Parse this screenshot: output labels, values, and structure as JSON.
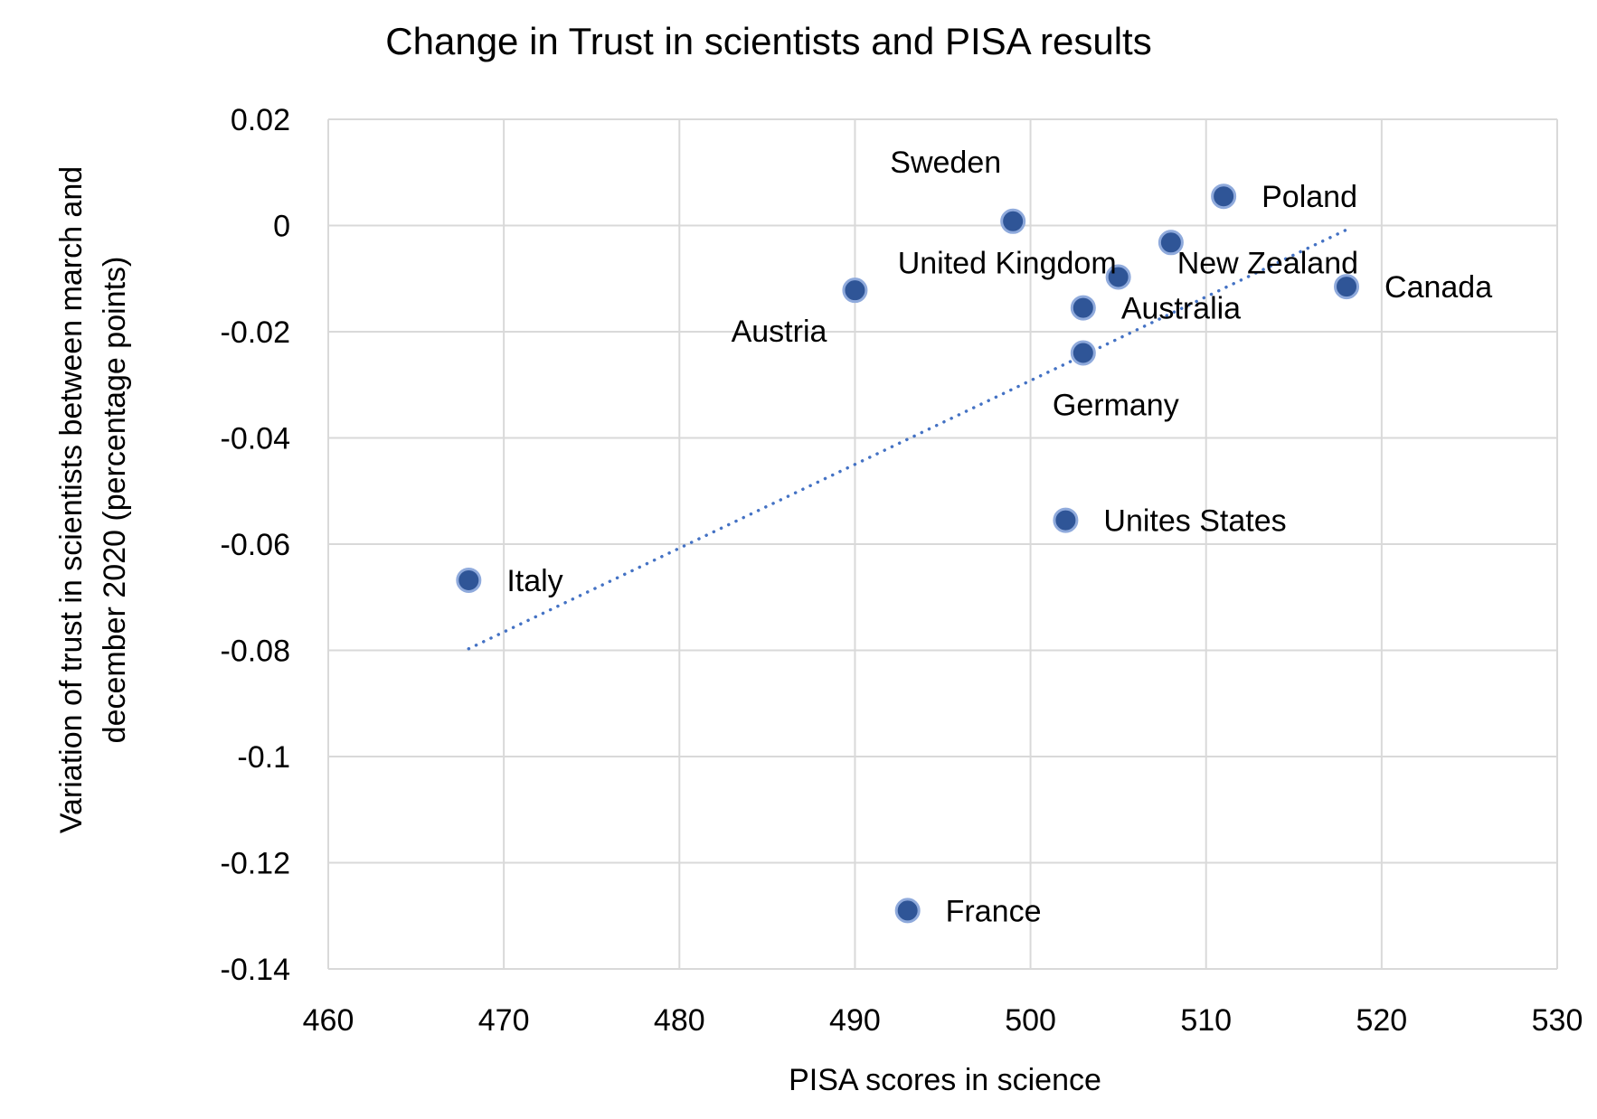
{
  "chart_data": {
    "type": "scatter",
    "title": "Change in Trust in scientists and PISA results",
    "xlabel": "PISA scores in science",
    "ylabel_lines": [
      "Variation of trust in scientists between march and",
      "december 2020 (percentage points)"
    ],
    "xlim": [
      460,
      530
    ],
    "ylim": [
      -0.14,
      0.02
    ],
    "xticks": [
      460,
      470,
      480,
      490,
      500,
      510,
      520,
      530
    ],
    "yticks": [
      0.02,
      0,
      -0.02,
      -0.04,
      -0.06,
      -0.08,
      -0.1,
      -0.12,
      -0.14
    ],
    "ytick_labels": [
      "0.02",
      "0",
      "-0.02",
      "-0.04",
      "-0.06",
      "-0.08",
      "-0.1",
      "-0.12",
      "-0.14"
    ],
    "grid": true,
    "point_color": "#2F5597",
    "point_edge_color": "#8FAADC",
    "trendline_color": "#4472C4",
    "trendline": {
      "style": "dotted",
      "x": [
        468,
        518
      ],
      "y": [
        -0.0797,
        -0.0008
      ]
    },
    "points": [
      {
        "label": "Poland",
        "x": 511,
        "y": 0.0055,
        "label_pos": "right"
      },
      {
        "label": "Sweden",
        "x": 499,
        "y": 0.0008,
        "label_pos": "upper-left"
      },
      {
        "label": "New Zealand",
        "x": 508,
        "y": -0.0032,
        "label_pos": "below-right"
      },
      {
        "label": "United Kingdom",
        "x": 505,
        "y": -0.0097,
        "label_pos": "left"
      },
      {
        "label": "Canada",
        "x": 518,
        "y": -0.0115,
        "label_pos": "right"
      },
      {
        "label": "Austria",
        "x": 490,
        "y": -0.0122,
        "label_pos": "lower-left"
      },
      {
        "label": "Australia",
        "x": 503,
        "y": -0.0155,
        "label_pos": "right"
      },
      {
        "label": "Germany",
        "x": 503,
        "y": -0.024,
        "label_pos": "below"
      },
      {
        "label": "Unites States",
        "x": 502,
        "y": -0.0555,
        "label_pos": "right"
      },
      {
        "label": "Italy",
        "x": 468,
        "y": -0.0668,
        "label_pos": "right"
      },
      {
        "label": "France",
        "x": 493,
        "y": -0.129,
        "label_pos": "right"
      }
    ]
  }
}
